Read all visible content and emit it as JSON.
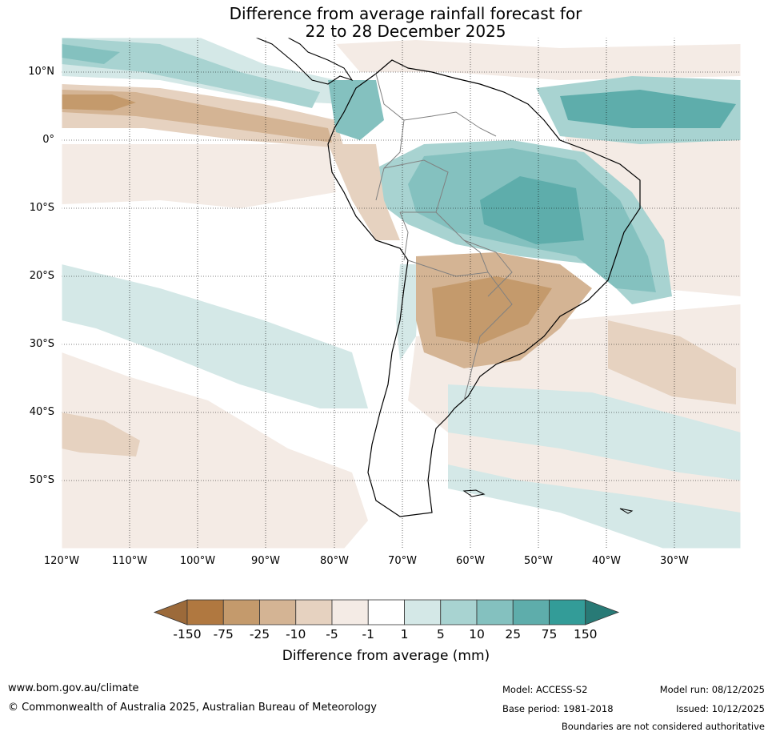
{
  "title": {
    "line1": "Difference from average rainfall forecast for",
    "line2": "22 to 28 December 2025"
  },
  "axes": {
    "latitudes": [
      "10°N",
      "0°",
      "10°S",
      "20°S",
      "30°S",
      "40°S",
      "50°S"
    ],
    "longitudes": [
      "120°W",
      "110°W",
      "100°W",
      "90°W",
      "80°W",
      "70°W",
      "60°W",
      "50°W",
      "40°W",
      "30°W"
    ]
  },
  "legend": {
    "title": "Difference from average (mm)",
    "ticks": [
      "-150",
      "-75",
      "-25",
      "-10",
      "-5",
      "-1",
      "1",
      "5",
      "10",
      "25",
      "75",
      "150"
    ],
    "colors": [
      "#9c6a3a",
      "#b07840",
      "#c49a6c",
      "#d4b494",
      "#e6d2c0",
      "#f4ebe5",
      "#ffffff",
      "#d4e8e7",
      "#a8d3d1",
      "#84c1bf",
      "#5eadab",
      "#339c98",
      "#287a76"
    ]
  },
  "footer": {
    "website": "www.bom.gov.au/climate",
    "copyright": "© Commonwealth of Australia 2025, Australian Bureau of Meteorology",
    "model": "Model: ACCESS-S2",
    "base_period": "Base period: 1981-2018",
    "model_run": "Model run: 08/12/2025",
    "issued": "Issued: 10/12/2025",
    "disclaimer": "Boundaries are not considered authoritative"
  }
}
